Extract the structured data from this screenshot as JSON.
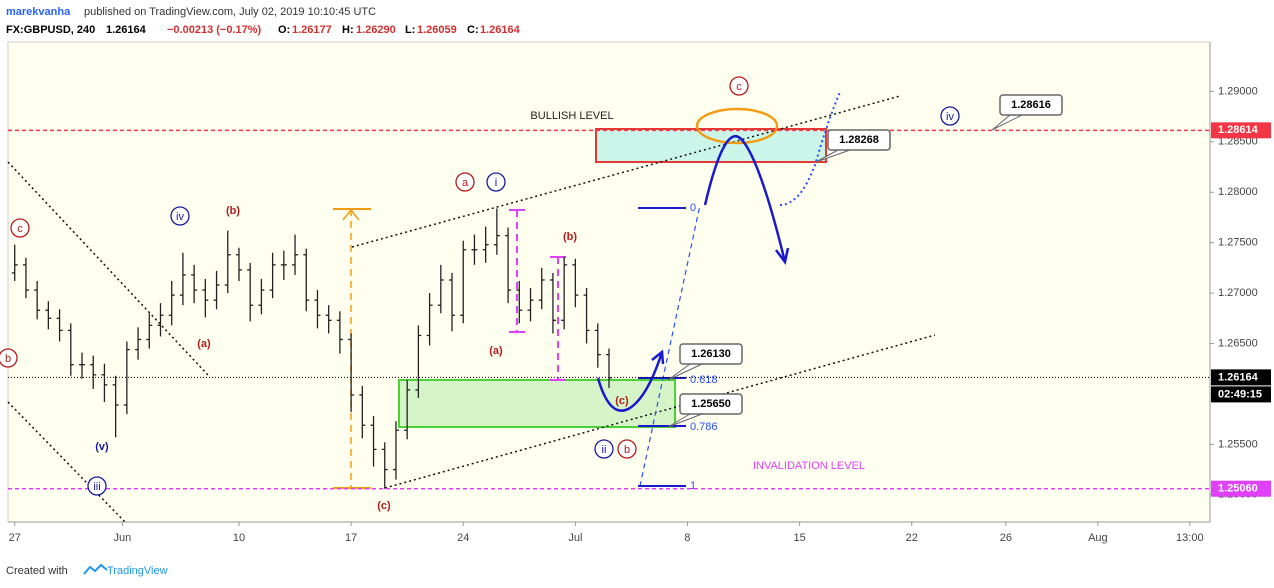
{
  "header": {
    "author": "marekvanha",
    "published": "published on TradingView.com, July 02, 2019 10:10:45 UTC",
    "symbol": "FX:GBPUSD, 240",
    "last": "1.26164",
    "change": "−0.00213 (−0.17%)",
    "open_label": "O:",
    "open": "1.26177",
    "high_label": "H:",
    "high": "1.26290",
    "low_label": "L:",
    "low": "1.26059",
    "close_label": "C:",
    "close": "1.26164"
  },
  "footer": {
    "created": "Created with",
    "brand": "TradingView"
  },
  "chart_data": {
    "type": "ohlc",
    "x": [
      0,
      0.5,
      1,
      1.5,
      2,
      2.5,
      3,
      3.5,
      4,
      4.5,
      5,
      5.5,
      6,
      6.5,
      7,
      7.5,
      8,
      8.5,
      9,
      9.5,
      10,
      10.5,
      11,
      11.5,
      12,
      12.5,
      13,
      13.5,
      14,
      14.5,
      15,
      15.5,
      16,
      16.5,
      17,
      17.5,
      18,
      18.5,
      19,
      19.5,
      20,
      20.5,
      21,
      21.5,
      22,
      22.5,
      23,
      23.5,
      24,
      24.5,
      25,
      25.5,
      26,
      26.5
    ],
    "open": [
      1.272,
      1.2728,
      1.2703,
      1.2683,
      1.2675,
      1.2663,
      1.2629,
      1.2629,
      1.2619,
      1.2609,
      1.2589,
      1.2644,
      1.2654,
      1.2668,
      1.2678,
      1.2698,
      1.2718,
      1.2703,
      1.2693,
      1.2708,
      1.2738,
      1.2723,
      1.2688,
      1.2703,
      1.2728,
      1.2728,
      1.2738,
      1.2693,
      1.2678,
      1.2673,
      1.2654,
      1.2599,
      1.2569,
      1.2545,
      1.2525,
      1.2564,
      1.2604,
      1.2658,
      1.2688,
      1.2713,
      1.2678,
      1.2743,
      1.2743,
      1.2748,
      1.2757,
      1.2703,
      1.2683,
      1.2693,
      1.2713,
      1.2673,
      1.2728,
      1.2698,
      1.2663,
      1.2639
    ],
    "high": [
      1.2748,
      1.2735,
      1.2712,
      1.2692,
      1.2684,
      1.267,
      1.2641,
      1.2638,
      1.263,
      1.2618,
      1.2652,
      1.2666,
      1.268,
      1.269,
      1.2712,
      1.274,
      1.2728,
      1.2714,
      1.2722,
      1.2762,
      1.2745,
      1.273,
      1.2714,
      1.274,
      1.2742,
      1.2758,
      1.2744,
      1.2703,
      1.2688,
      1.2682,
      1.266,
      1.2608,
      1.2578,
      1.2552,
      1.2573,
      1.2614,
      1.2668,
      1.27,
      1.2728,
      1.272,
      1.2752,
      1.2758,
      1.2766,
      1.2784,
      1.2765,
      1.2712,
      1.2705,
      1.2725,
      1.272,
      1.2736,
      1.2734,
      1.2705,
      1.267,
      1.2645
    ],
    "low": [
      1.2712,
      1.2695,
      1.2674,
      1.2664,
      1.2652,
      1.2618,
      1.2615,
      1.2605,
      1.2592,
      1.2557,
      1.258,
      1.2634,
      1.2645,
      1.2657,
      1.2668,
      1.2688,
      1.269,
      1.2676,
      1.2684,
      1.27,
      1.2712,
      1.2672,
      1.2679,
      1.2695,
      1.2713,
      1.2718,
      1.2682,
      1.2665,
      1.266,
      1.264,
      1.2582,
      1.2556,
      1.2528,
      1.2506,
      1.2515,
      1.2555,
      1.2596,
      1.2648,
      1.268,
      1.2662,
      1.267,
      1.2728,
      1.273,
      1.2738,
      1.269,
      1.267,
      1.2672,
      1.2684,
      1.266,
      1.2664,
      1.2686,
      1.265,
      1.2626,
      1.2606
    ],
    "close": [
      1.2728,
      1.2703,
      1.2683,
      1.2675,
      1.2663,
      1.2629,
      1.2629,
      1.2619,
      1.2609,
      1.2589,
      1.2644,
      1.2654,
      1.2668,
      1.2678,
      1.2698,
      1.2718,
      1.2703,
      1.2693,
      1.2708,
      1.2738,
      1.2723,
      1.2688,
      1.2703,
      1.2728,
      1.2728,
      1.2738,
      1.2693,
      1.2678,
      1.2673,
      1.2654,
      1.2599,
      1.2569,
      1.2545,
      1.2525,
      1.2564,
      1.2604,
      1.2658,
      1.2688,
      1.2713,
      1.2678,
      1.2743,
      1.2743,
      1.2748,
      1.2757,
      1.2703,
      1.2683,
      1.2693,
      1.2713,
      1.2673,
      1.2728,
      1.2698,
      1.2663,
      1.2639,
      1.2616
    ],
    "color": "#222222",
    "xlim": [
      -0.3,
      53.3
    ],
    "xticks": [
      {
        "value": 0,
        "label": "27"
      },
      {
        "value": 4.8,
        "label": "Jun"
      },
      {
        "value": 10,
        "label": "10"
      },
      {
        "value": 15,
        "label": "17"
      },
      {
        "value": 20,
        "label": "24"
      },
      {
        "value": 25,
        "label": "Jul"
      },
      {
        "value": 30,
        "label": "8"
      },
      {
        "value": 35,
        "label": "15"
      },
      {
        "value": 40,
        "label": "22"
      },
      {
        "value": 44.2,
        "label": "26"
      },
      {
        "value": 48.3,
        "label": "Aug"
      },
      {
        "value": 52.4,
        "label": "13:00"
      }
    ],
    "ylim": [
      1.2473,
      1.2949
    ],
    "yticks": [
      {
        "value": 1.25,
        "label": "1.25000"
      },
      {
        "value": 1.255,
        "label": "1.25500"
      },
      {
        "value": 1.26,
        "label": "1.26000"
      },
      {
        "value": 1.265,
        "label": "1.26500"
      },
      {
        "value": 1.27,
        "label": "1.27000"
      },
      {
        "value": 1.275,
        "label": "1.27500"
      },
      {
        "value": 1.28,
        "label": "1.28000"
      },
      {
        "value": 1.285,
        "label": "1.28500"
      },
      {
        "value": 1.29,
        "label": "1.29000"
      }
    ],
    "levels": [
      {
        "value": 1.28614,
        "label": "1.28614",
        "color": "#f23645",
        "text": "BULLISH LEVEL"
      },
      {
        "value": 1.2506,
        "label": "1.25060",
        "color": "#e040fb",
        "text": "INVALIDATION LEVEL"
      },
      {
        "value": 1.26164,
        "label": "1.26164",
        "color": "#000000"
      }
    ],
    "countdown": "02:49:15",
    "callouts": [
      "1.28616",
      "1.28268",
      "1.26130",
      "1.25650"
    ],
    "fib_labels": [
      "0",
      "0.618",
      "0.786",
      "1"
    ],
    "waves": [
      "c",
      "iv",
      "(b)",
      "(a)",
      "(v)",
      "iii",
      "b",
      "a",
      "i",
      "(b)",
      "(a)",
      "(c)",
      "ii",
      "b",
      "(c)",
      "c",
      "iv"
    ]
  }
}
